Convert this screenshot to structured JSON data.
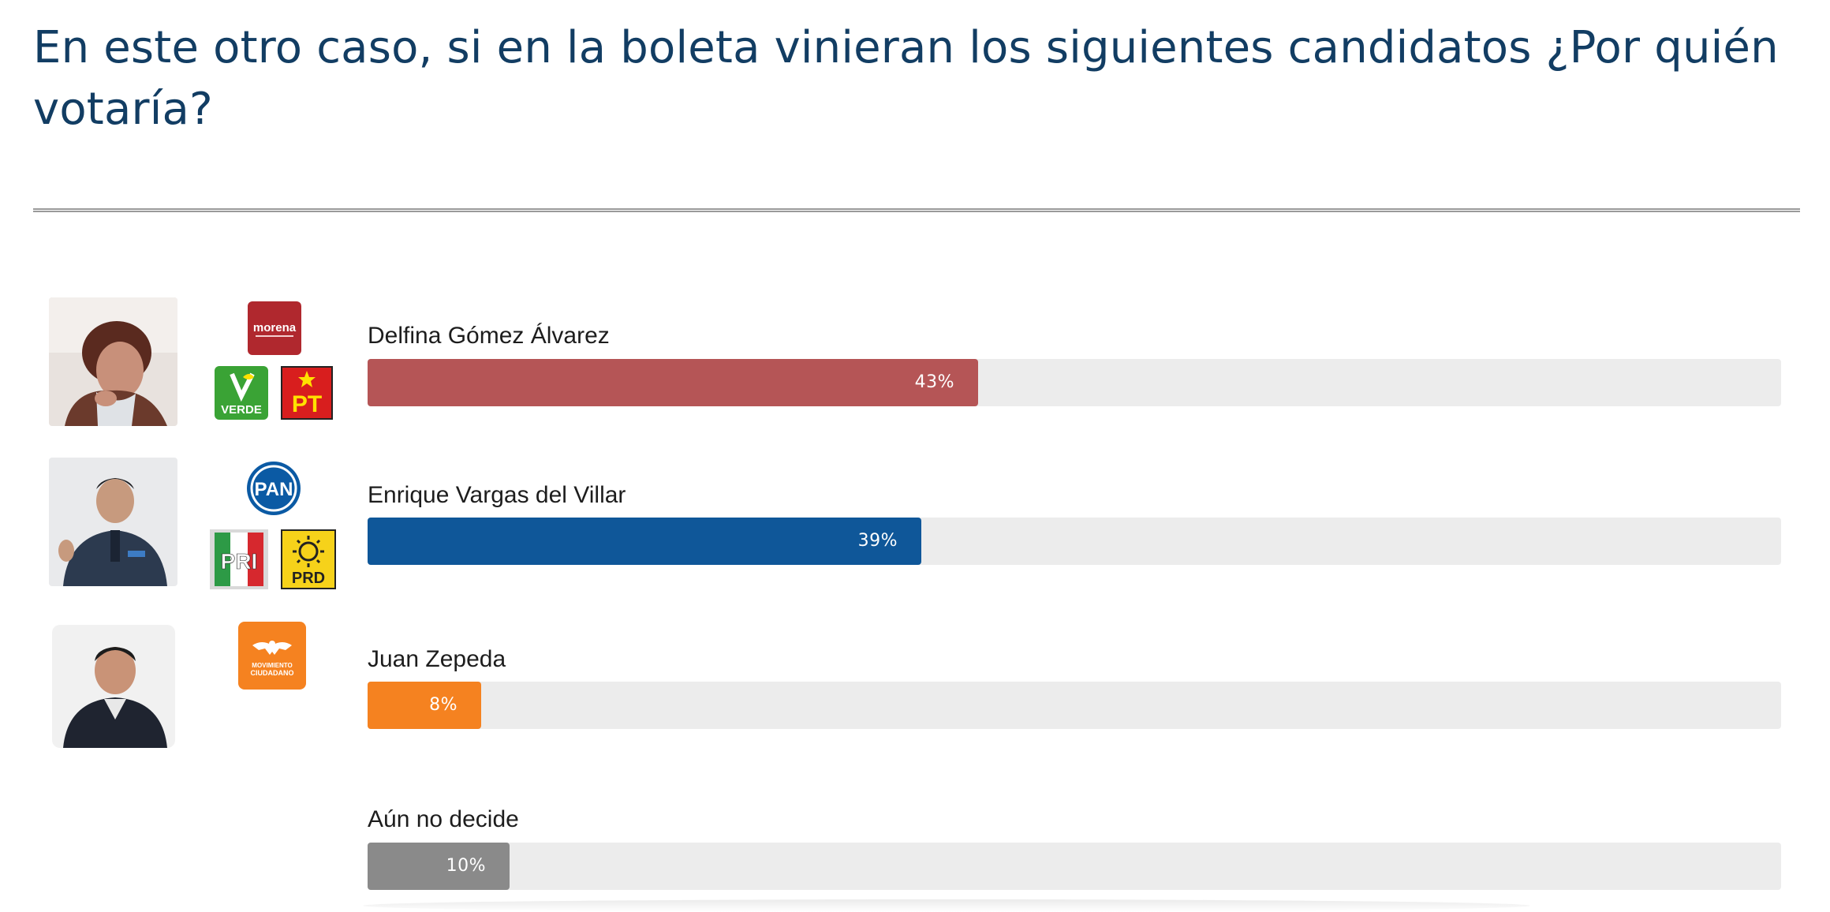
{
  "title": "En este otro caso, si en la boleta vinieran los siguientes candidatos ¿Por quién votaría?",
  "chart_data": {
    "type": "bar",
    "orientation": "horizontal",
    "title": "En este otro caso, si en la boleta vinieran los siguientes candidatos ¿Por quién votaría?",
    "xlim": [
      0,
      100
    ],
    "unit": "%",
    "grid": false,
    "categories": [
      "Delfina Gómez Álvarez",
      "Enrique Vargas del Villar",
      "Juan Zepeda",
      "Aún no decide"
    ],
    "values": [
      43,
      39,
      8,
      10
    ],
    "value_labels": [
      "43%",
      "39%",
      "8%",
      "10%"
    ],
    "colors": [
      "#b55556",
      "#0f5799",
      "#f58220",
      "#8a8a8a"
    ]
  },
  "rows": [
    {
      "name": "Delfina Gómez Álvarez",
      "value_label": "43%",
      "photo_icon": "candidate-photo-delfina",
      "party_logos": [
        "morena",
        "VERDE",
        "PT"
      ],
      "morena_text": "morena",
      "verde_text": "VERDE",
      "pt_text": "PT"
    },
    {
      "name": "Enrique Vargas del Villar",
      "value_label": "39%",
      "photo_icon": "candidate-photo-enrique",
      "party_logos": [
        "PAN",
        "PRI",
        "PRD"
      ],
      "pan_text": "PAN",
      "pri_text": "PRI",
      "prd_text": "PRD"
    },
    {
      "name": "Juan Zepeda",
      "value_label": "8%",
      "photo_icon": "candidate-photo-juan",
      "party_logos": [
        "MOVIMIENTO CIUDADANO"
      ],
      "mc_text_1": "MOVIMIENTO",
      "mc_text_2": "CIUDADANO"
    },
    {
      "name": "Aún no decide",
      "value_label": "10%"
    }
  ],
  "colors": {
    "title": "#123d63",
    "track": "#ececec",
    "morena": "#b0282e",
    "verde": "#3aa335",
    "pt": "#d81e1e",
    "pan": "#0b5aa4",
    "prd": "#f6d21a",
    "mc": "#f58220"
  }
}
